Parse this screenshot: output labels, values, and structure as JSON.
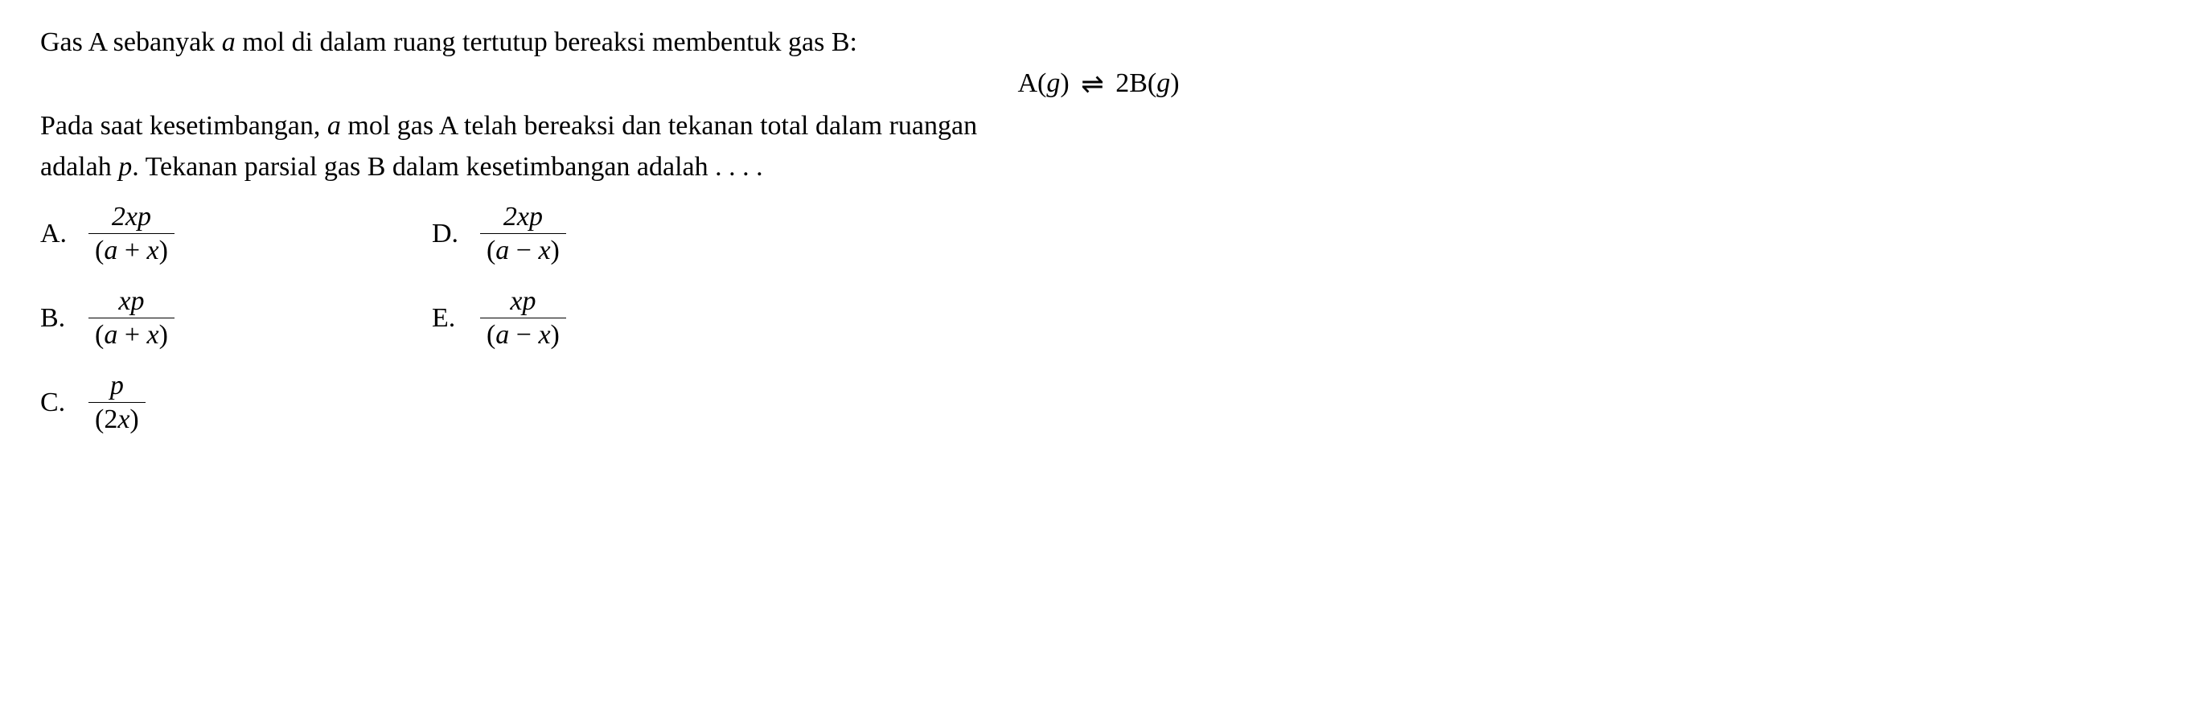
{
  "question": {
    "line1_pre": "Gas A sebanyak ",
    "line1_var": "a",
    "line1_post": " mol di dalam ruang tertutup bereaksi membentuk gas B:",
    "equation_lhs": "A(",
    "equation_g1": "g",
    "equation_mid1": ") ",
    "equation_arrow": "⇌",
    "equation_mid2": " 2B(",
    "equation_g2": "g",
    "equation_rhs": ")",
    "line2_pre": "Pada saat kesetimbangan, ",
    "line2_var": "a",
    "line2_post": " mol gas A telah bereaksi dan tekanan total dalam ruangan",
    "line3_pre": "adalah ",
    "line3_var": "p",
    "line3_post": ". Tekanan parsial gas B dalam kesetimbangan adalah . . . ."
  },
  "options": {
    "A": {
      "label": "A.",
      "num": "2xp",
      "den_open": "(",
      "den_a": "a",
      "den_op": " + ",
      "den_x": "x",
      "den_close": ")"
    },
    "B": {
      "label": "B.",
      "num": "xp",
      "den_open": "(",
      "den_a": "a",
      "den_op": " + ",
      "den_x": "x",
      "den_close": ")"
    },
    "C": {
      "label": "C.",
      "num": "p",
      "den_open": "(2",
      "den_x": "x",
      "den_close": ")"
    },
    "D": {
      "label": "D.",
      "num": "2xp",
      "den_open": "(",
      "den_a": "a",
      "den_op": " − ",
      "den_x": "x",
      "den_close": ")"
    },
    "E": {
      "label": "E.",
      "num": "xp",
      "den_open": "(",
      "den_a": "a",
      "den_op": " − ",
      "den_x": "x",
      "den_close": ")"
    }
  },
  "style": {
    "font_family": "Times New Roman",
    "font_size_pt": 26,
    "text_color": "#000000",
    "background_color": "#ffffff",
    "fraction_rule_color": "#000000"
  }
}
